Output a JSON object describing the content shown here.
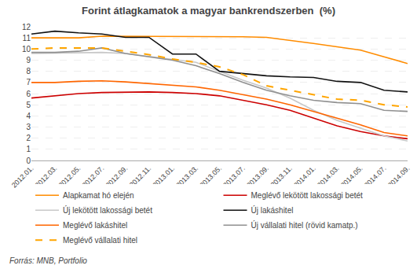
{
  "chart_data": {
    "type": "line",
    "title": "Forint átlagkamatok a magyar bankrendszerben  (%)",
    "categories": [
      "2012.01.",
      "2012.03.",
      "2012.05.",
      "2012.07.",
      "2012.09.",
      "2012.11.",
      "2013.01.",
      "2013.03.",
      "2013.05.",
      "2013.07.",
      "2013.09.",
      "2013.11.",
      "2014.01.",
      "2014.03.",
      "2014.05.",
      "2014.07.",
      "2014.09."
    ],
    "series": [
      {
        "name": "Alapkamat hó elején",
        "color": "#FF8C00",
        "line_style": "solid",
        "values": [
          11.0,
          11.0,
          11.0,
          11.15,
          11.15,
          11.15,
          11.15,
          11.15,
          11.15,
          11.1,
          11.05,
          10.8,
          10.5,
          10.2,
          9.9,
          9.3,
          8.7
        ]
      },
      {
        "name": "Meglévő lekötött lakossági betét",
        "color": "#CC0000",
        "line_style": "solid",
        "values": [
          5.6,
          5.8,
          6.0,
          6.1,
          6.15,
          6.15,
          6.1,
          6.0,
          5.8,
          5.4,
          5.0,
          4.5,
          3.8,
          3.1,
          2.6,
          2.2,
          1.95
        ]
      },
      {
        "name": "Új lekötött lakossági betét",
        "color": "#C8C8C8",
        "line_style": "solid",
        "values": [
          9.6,
          9.65,
          9.7,
          9.7,
          9.6,
          9.35,
          9.1,
          8.8,
          8.0,
          7.2,
          6.5,
          5.6,
          4.5,
          3.6,
          2.9,
          2.2,
          1.75
        ]
      },
      {
        "name": "Új lakáshitel",
        "color": "#111111",
        "line_style": "solid",
        "values": [
          11.35,
          11.6,
          11.45,
          11.35,
          11.05,
          11.05,
          9.55,
          9.55,
          8.0,
          7.8,
          7.6,
          7.5,
          7.45,
          7.1,
          7.0,
          6.3,
          6.15
        ]
      },
      {
        "name": "Meglévő lakáshitel",
        "color": "#FF6600",
        "line_style": "solid",
        "values": [
          7.0,
          7.0,
          7.1,
          7.15,
          7.05,
          6.9,
          6.8,
          6.6,
          6.3,
          5.9,
          5.5,
          5.0,
          4.4,
          3.8,
          3.2,
          2.5,
          2.2
        ]
      },
      {
        "name": "Új vállalati hitel (rövid kamatp.)",
        "color": "#909090",
        "line_style": "solid",
        "values": [
          9.7,
          9.7,
          9.8,
          10.1,
          9.6,
          9.3,
          9.0,
          8.5,
          7.8,
          7.0,
          6.3,
          5.8,
          5.4,
          5.2,
          5.1,
          4.5,
          4.4
        ]
      },
      {
        "name": "Meglévő vállalati hitel",
        "color": "#FFA500",
        "line_style": "dashed",
        "values": [
          10.0,
          10.1,
          10.1,
          10.1,
          9.8,
          9.5,
          9.1,
          8.8,
          8.4,
          7.7,
          6.7,
          6.3,
          5.9,
          5.5,
          5.4,
          5.0,
          4.8
        ]
      }
    ],
    "ylim": [
      0,
      12
    ],
    "yticks": [
      0,
      1,
      2,
      3,
      4,
      5,
      6,
      7,
      8,
      9,
      10,
      11,
      12
    ],
    "grid": true,
    "legend": "bottom",
    "annotations": [
      "Forrás: MNB, Portfolio"
    ]
  }
}
